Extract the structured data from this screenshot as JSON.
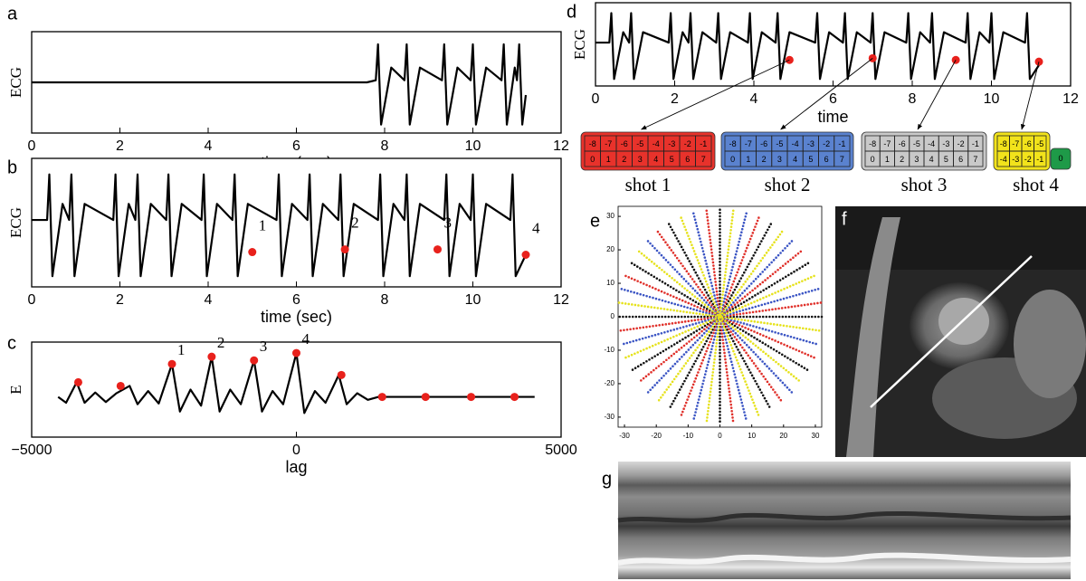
{
  "chart_data": [
    {
      "type": "line",
      "panel_label": "a",
      "xlabel": "time (sec)",
      "ylabel": "ECG",
      "xlim": [
        0,
        12
      ],
      "ylim": [
        -1.2,
        1.2
      ],
      "xticks": [
        0,
        2,
        4,
        6,
        8,
        10,
        12
      ],
      "series": [
        {
          "color": "#000000",
          "x": [
            0,
            7.6,
            7.8,
            7.85,
            7.92,
            8.15,
            8.45,
            8.5,
            8.57,
            8.8,
            9.3,
            9.35,
            9.42,
            9.65,
            9.95,
            10.0,
            10.07,
            10.3,
            10.65,
            10.7,
            10.77,
            10.95,
            11.0,
            11.05,
            11.12,
            11.2
          ],
          "values": [
            0,
            0,
            0.05,
            0.9,
            -1,
            0.35,
            0.05,
            0.9,
            -1,
            0.35,
            0.05,
            0.9,
            -1,
            0.35,
            0.05,
            0.9,
            -1,
            0.35,
            0.05,
            0.9,
            -1,
            0.35,
            0.05,
            0.9,
            -1,
            -0.3
          ]
        }
      ]
    },
    {
      "type": "line",
      "panel_label": "b",
      "xlabel": "time (sec)",
      "ylabel": "ECG",
      "xlim": [
        0,
        12
      ],
      "ylim": [
        -1.2,
        1.2
      ],
      "xticks": [
        0,
        2,
        4,
        6,
        8,
        10,
        12
      ],
      "series": [
        {
          "color": "#000000",
          "x": [
            0,
            0.35,
            0.4,
            0.47,
            0.7,
            0.85,
            0.9,
            0.97,
            1.2,
            1.85,
            1.9,
            1.97,
            2.2,
            2.35,
            2.4,
            2.47,
            2.7,
            3.05,
            3.1,
            3.17,
            3.4,
            3.85,
            3.9,
            3.97,
            4.2,
            4.55,
            4.6,
            4.67,
            4.9,
            5.55,
            5.6,
            5.67,
            5.9,
            6.25,
            6.3,
            6.37,
            6.6,
            6.95,
            7.0,
            7.07,
            7.3,
            7.85,
            7.9,
            7.97,
            8.2,
            8.45,
            8.5,
            8.57,
            8.8,
            9.35,
            9.4,
            9.47,
            9.7,
            9.95,
            10.0,
            10.07,
            10.3,
            10.85,
            10.9,
            10.97,
            11.2
          ],
          "values": [
            0.05,
            0.05,
            0.9,
            -1,
            0.35,
            0.05,
            0.9,
            -1,
            0.35,
            0.05,
            0.9,
            -1,
            0.35,
            0.05,
            0.9,
            -1,
            0.35,
            0.05,
            0.9,
            -1,
            0.35,
            0.05,
            0.9,
            -1,
            0.35,
            0.05,
            0.9,
            -1,
            0.35,
            0.05,
            0.9,
            -1,
            0.35,
            0.05,
            0.9,
            -1,
            0.35,
            0.05,
            0.9,
            -1,
            0.35,
            0.05,
            0.9,
            -1,
            0.35,
            0.05,
            0.9,
            -1,
            0.35,
            0.05,
            0.9,
            -1,
            0.35,
            0.05,
            0.9,
            -1,
            0.35,
            0.05,
            0.9,
            -1,
            -0.6
          ]
        }
      ],
      "markers": {
        "color": "#e8211c",
        "x": [
          5.0,
          7.1,
          9.2,
          11.2
        ],
        "values": [
          -0.55,
          -0.5,
          -0.5,
          -0.6
        ],
        "labels": [
          "1",
          "2",
          "3",
          "4"
        ]
      }
    },
    {
      "type": "line",
      "panel_label": "c",
      "xlabel": "lag",
      "ylabel": "E",
      "xlim": [
        -5000,
        5000
      ],
      "ylim": [
        -0.55,
        0.75
      ],
      "xticks": [
        {
          "value": -5000,
          "label": "−5000"
        },
        0,
        5000
      ],
      "series": [
        {
          "color": "#000000",
          "x": [
            -4500,
            -4350,
            -4150,
            -4000,
            -3800,
            -3600,
            -3400,
            -3150,
            -3000,
            -2800,
            -2600,
            -2350,
            -2200,
            -2000,
            -1800,
            -1600,
            -1450,
            -1250,
            -1050,
            -800,
            -650,
            -450,
            -250,
            0,
            150,
            350,
            550,
            800,
            950,
            1150,
            1350,
            1550,
            4500
          ],
          "values": [
            0,
            -0.08,
            0.2,
            -0.08,
            0.06,
            -0.07,
            0.05,
            0.15,
            -0.1,
            0.08,
            -0.09,
            0.45,
            -0.2,
            0.1,
            -0.12,
            0.55,
            -0.2,
            0.1,
            -0.1,
            0.5,
            -0.2,
            0.08,
            -0.1,
            0.6,
            -0.22,
            0.08,
            -0.08,
            0.3,
            -0.1,
            0.05,
            -0.04,
            0,
            0
          ]
        }
      ],
      "markers": {
        "color": "#e8211c",
        "x": [
          -4120,
          -3320,
          -2350,
          -1600,
          -800,
          0,
          850,
          1620,
          2440,
          3300,
          4120
        ],
        "values": [
          0.2,
          0.15,
          0.45,
          0.55,
          0.5,
          0.6,
          0.3,
          0,
          0,
          0,
          0
        ],
        "labels": [
          null,
          null,
          "1",
          "2",
          "3",
          "4",
          null,
          null,
          null,
          null,
          null
        ]
      }
    },
    {
      "type": "line",
      "panel_label": "d",
      "xlabel": "time",
      "ylabel": "ECG",
      "xlim": [
        0,
        12
      ],
      "ylim": [
        -1.2,
        1.2
      ],
      "xticks": [
        0,
        2,
        4,
        6,
        8,
        10,
        12
      ],
      "series": [
        {
          "color": "#000000",
          "x": [
            0,
            0.35,
            0.4,
            0.47,
            0.7,
            0.85,
            0.9,
            0.97,
            1.2,
            1.85,
            1.9,
            1.97,
            2.2,
            2.35,
            2.4,
            2.47,
            2.7,
            3.05,
            3.1,
            3.17,
            3.4,
            3.85,
            3.9,
            3.97,
            4.2,
            4.55,
            4.6,
            4.67,
            4.9,
            5.55,
            5.6,
            5.67,
            5.9,
            6.25,
            6.3,
            6.37,
            6.6,
            6.95,
            7.0,
            7.07,
            7.3,
            7.85,
            7.9,
            7.97,
            8.2,
            8.45,
            8.5,
            8.57,
            8.8,
            9.35,
            9.4,
            9.47,
            9.7,
            9.95,
            10.0,
            10.07,
            10.3,
            10.85,
            10.9,
            10.97,
            11.2
          ],
          "values": [
            0.05,
            0.05,
            0.9,
            -1,
            0.35,
            0.05,
            0.9,
            -1,
            0.35,
            0.05,
            0.9,
            -1,
            0.35,
            0.05,
            0.9,
            -1,
            0.35,
            0.05,
            0.9,
            -1,
            0.35,
            0.05,
            0.9,
            -1,
            0.35,
            0.05,
            0.9,
            -1,
            0.35,
            0.05,
            0.9,
            -1,
            0.35,
            0.05,
            0.9,
            -1,
            0.35,
            0.05,
            0.9,
            -1,
            0.35,
            0.05,
            0.9,
            -1,
            0.35,
            0.05,
            0.9,
            -1,
            0.35,
            0.05,
            0.9,
            -1,
            0.35,
            0.05,
            0.9,
            -1,
            0.35,
            0.05,
            0.9,
            -1,
            -0.6
          ]
        }
      ],
      "markers": {
        "color": "#e8211c",
        "x": [
          4.9,
          7.0,
          9.1,
          11.2
        ],
        "values": [
          -0.45,
          -0.4,
          -0.45,
          -0.5
        ],
        "labels": [
          null,
          null,
          null,
          null
        ]
      },
      "shots": [
        {
          "label": "shot 1",
          "color": "#e8322b",
          "rows": [
            [
              -8,
              -7,
              -6,
              -5,
              -4,
              -3,
              -2,
              -1
            ],
            [
              0,
              1,
              2,
              3,
              4,
              5,
              6,
              7
            ]
          ]
        },
        {
          "label": "shot 2",
          "color": "#5a82cf",
          "rows": [
            [
              -8,
              -7,
              -6,
              -5,
              -4,
              -3,
              -2,
              -1
            ],
            [
              0,
              1,
              2,
              3,
              4,
              5,
              6,
              7
            ]
          ]
        },
        {
          "label": "shot 3",
          "color": "#c9c9c9",
          "rows": [
            [
              -8,
              -7,
              -6,
              -5,
              -4,
              -3,
              -2,
              -1
            ],
            [
              0,
              1,
              2,
              3,
              4,
              5,
              6,
              7
            ]
          ]
        },
        {
          "label": "shot 4",
          "color": "#f2e31b",
          "rows": [
            [
              -8,
              -7,
              -6,
              -5
            ],
            [
              -4,
              -3,
              -2,
              -1
            ]
          ],
          "extra": [
            0
          ],
          "extra_color": "#1e9a48"
        }
      ]
    },
    {
      "type": "scatter",
      "panel_label": "e",
      "xlim": [
        -32,
        32
      ],
      "ylim": [
        -33,
        33
      ],
      "xticks": [
        -30,
        -20,
        -10,
        0,
        10,
        20,
        30
      ],
      "yticks": [
        -30,
        -20,
        -10,
        0,
        10,
        20,
        30
      ],
      "series": [
        {
          "color": "#111111",
          "x": [
            32,
            -32,
            null,
            27.7,
            -27.7,
            null,
            16,
            -16,
            null,
            0,
            0,
            null,
            -16,
            16,
            null,
            -27.7,
            27.7
          ],
          "values": [
            0,
            0,
            null,
            16,
            -16,
            null,
            27.7,
            -27.7,
            null,
            32,
            -32,
            null,
            27.7,
            -27.7,
            null,
            16,
            -16
          ]
        },
        {
          "color": "#e0302a",
          "x": [
            31.7,
            -31.7,
            null,
            25.4,
            -25.4,
            null,
            12.2,
            -12.2,
            null,
            -4.2,
            4.2,
            null,
            -19.5,
            19.5,
            null,
            -29.6,
            29.6
          ],
          "values": [
            4.2,
            -4.2,
            null,
            19.5,
            -19.5,
            null,
            29.6,
            -29.6,
            null,
            31.7,
            -31.7,
            null,
            25.4,
            -25.4,
            null,
            12.2,
            -12.2
          ]
        },
        {
          "color": "#3b55c4",
          "x": [
            30.9,
            -30.9,
            null,
            22.6,
            -22.6,
            null,
            8.3,
            -8.3,
            null,
            -8.3,
            8.3,
            null,
            -22.6,
            22.6,
            null,
            -30.9,
            30.9
          ],
          "values": [
            8.3,
            -8.3,
            null,
            22.6,
            -22.6,
            null,
            30.9,
            -30.9,
            null,
            30.9,
            -30.9,
            null,
            22.6,
            -22.6,
            null,
            8.3,
            -8.3
          ]
        },
        {
          "color": "#e6e21c",
          "x": [
            29.6,
            -29.6,
            null,
            19.5,
            -19.5,
            null,
            4.2,
            -4.2,
            null,
            -12.2,
            12.2,
            null,
            -25.4,
            25.4,
            null,
            -31.7,
            31.7
          ],
          "values": [
            12.2,
            -12.2,
            null,
            25.4,
            -25.4,
            null,
            31.7,
            -31.7,
            null,
            29.6,
            -29.6,
            null,
            19.5,
            -19.5,
            null,
            4.2,
            -4.2
          ]
        }
      ]
    }
  ],
  "image_panels": [
    {
      "panel_label": "f"
    },
    {
      "panel_label": "g"
    }
  ]
}
